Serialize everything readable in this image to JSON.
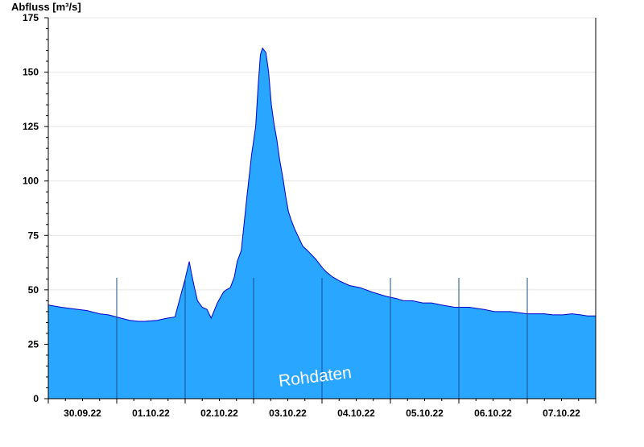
{
  "chart_data": {
    "type": "area",
    "ylabel": "Abfluss [m³/s]",
    "ylim": [
      0,
      175
    ],
    "yticks": [
      0,
      25,
      50,
      75,
      100,
      125,
      150,
      175
    ],
    "xlim": [
      0,
      8
    ],
    "day_ticks": [
      {
        "pos": 0.5,
        "label": "30.09.22"
      },
      {
        "pos": 1.5,
        "label": "01.10.22"
      },
      {
        "pos": 2.5,
        "label": "02.10.22"
      },
      {
        "pos": 3.5,
        "label": "03.10.22"
      },
      {
        "pos": 4.5,
        "label": "04.10.22"
      },
      {
        "pos": 5.5,
        "label": "05.10.22"
      },
      {
        "pos": 6.5,
        "label": "06.10.22"
      },
      {
        "pos": 7.5,
        "label": "07.10.22"
      }
    ],
    "grid": true,
    "fill_color": "#29a6ff",
    "line_color": "#0000cc",
    "watermark": "Rohdaten",
    "series": [
      {
        "x": [
          0,
          0.19,
          0.44,
          0.56,
          0.75,
          0.88,
          1.06,
          1.19,
          1.32,
          1.41,
          1.59,
          1.74,
          1.85,
          2.0,
          2.06,
          2.09,
          2.13,
          2.18,
          2.25,
          2.32,
          2.38,
          2.47,
          2.56,
          2.6,
          2.66,
          2.72,
          2.76,
          2.82,
          2.9,
          2.97,
          3.03,
          3.07,
          3.1,
          3.13,
          3.18,
          3.22,
          3.26,
          3.3,
          3.34,
          3.38,
          3.43,
          3.47,
          3.51,
          3.55,
          3.6,
          3.66,
          3.72,
          3.79,
          3.85,
          3.91,
          3.96,
          4.01,
          4.07,
          4.15,
          4.26,
          4.4,
          4.56,
          4.73,
          4.94,
          5.09,
          5.19,
          5.32,
          5.47,
          5.6,
          5.75,
          5.94,
          6.15,
          6.37,
          6.52,
          6.75,
          7.0,
          7.25,
          7.37,
          7.52,
          7.65,
          7.78,
          7.88,
          8.0
        ],
        "y": [
          43,
          42,
          41,
          40.5,
          39,
          38.5,
          37,
          36,
          35.5,
          35.5,
          36,
          37,
          37.5,
          55,
          63,
          58,
          52,
          45,
          42,
          41,
          37,
          44,
          49,
          50,
          51,
          56,
          63,
          68,
          92,
          112,
          125,
          145,
          158,
          161,
          159,
          150,
          135,
          126,
          119,
          110,
          101,
          93,
          86,
          82,
          78,
          74,
          70,
          68,
          66,
          64,
          62,
          60,
          58,
          56,
          54,
          52,
          51,
          49,
          47,
          46,
          45,
          45,
          44,
          44,
          43,
          42,
          42,
          41,
          40,
          40,
          39,
          39,
          38.5,
          38.5,
          39,
          38.5,
          38,
          38
        ]
      }
    ]
  }
}
